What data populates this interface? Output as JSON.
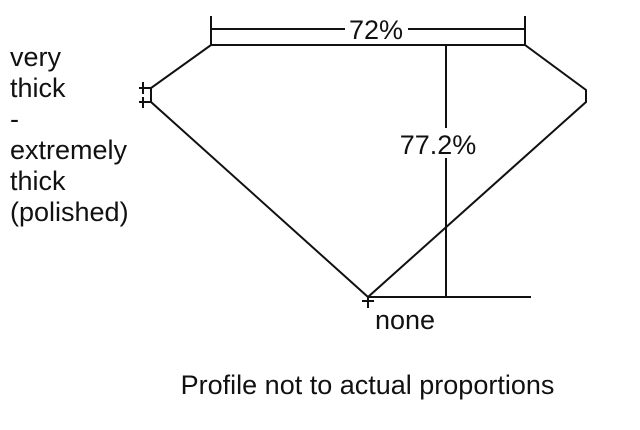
{
  "girdle_label": [
    "very",
    "thick",
    "-",
    "extremely",
    "thick",
    "(polished)"
  ],
  "table_label": "72%",
  "depth_label": "77.2%",
  "culet_label": "none",
  "caption": "Profile not to actual proportions",
  "colors": {
    "line": "#111111",
    "background": "#ffffff"
  }
}
